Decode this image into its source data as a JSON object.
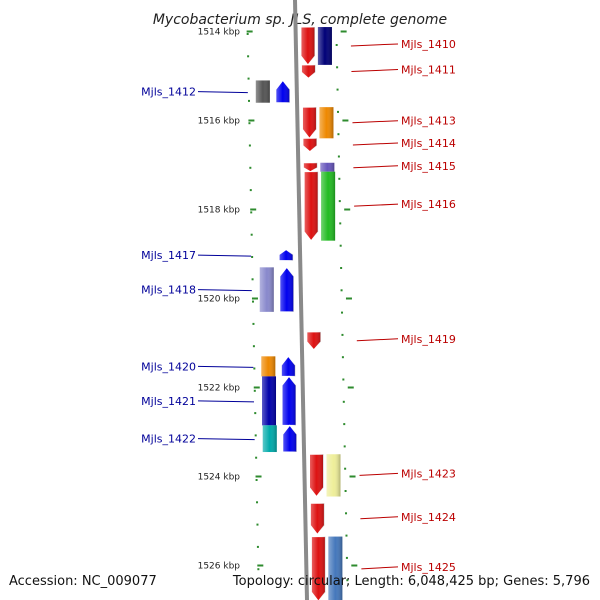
{
  "title": "Mycobacterium sp. JLS, complete genome",
  "footer": {
    "accession": "Accession: NC_009077",
    "topology": "Topology: circular; Length: 6,048,425 bp; Genes: 5,796"
  },
  "colors": {
    "background": "#ffffff",
    "dots": "#2e8b2e",
    "label_left": "#000099",
    "label_right": "#bb0000",
    "backbone": "#8a8a8a"
  },
  "axis": {
    "unit": "kbp",
    "ticks": [
      {
        "value": 1514,
        "label": "1514 kbp"
      },
      {
        "value": 1516,
        "label": "1516 kbp"
      },
      {
        "value": 1518,
        "label": "1518 kbp"
      },
      {
        "value": 1520,
        "label": "1520 kbp"
      },
      {
        "value": 1522,
        "label": "1522 kbp"
      },
      {
        "value": 1524,
        "label": "1524 kbp"
      },
      {
        "value": 1526,
        "label": "1526 kbp"
      }
    ]
  },
  "genes": [
    {
      "name": "Mjls_1410",
      "start": 1513.9,
      "end": 1514.75,
      "side": "right",
      "gene_strand": "reverse",
      "color": "#dd1111",
      "feature_color": "#000077"
    },
    {
      "name": "Mjls_1411",
      "start": 1514.75,
      "end": 1515.05,
      "side": "right",
      "gene_strand": "reverse",
      "color": "#dd1111",
      "feature_color": "#ffffff"
    },
    {
      "name": "Mjls_1412",
      "start": 1515.1,
      "end": 1515.6,
      "side": "left",
      "gene_strand": "forward",
      "color": "#0000ee",
      "feature_color": "#555555"
    },
    {
      "name": "Mjls_1413",
      "start": 1515.7,
      "end": 1516.4,
      "side": "right",
      "gene_strand": "reverse",
      "color": "#dd1111",
      "feature_color": "#ee8800"
    },
    {
      "name": "Mjls_1414",
      "start": 1516.4,
      "end": 1516.7,
      "side": "right",
      "gene_strand": "reverse",
      "color": "#dd1111",
      "feature_color": "#ffffff"
    },
    {
      "name": "Mjls_1415",
      "start": 1516.95,
      "end": 1517.15,
      "side": "right",
      "gene_strand": "reverse",
      "color": "#dd1111",
      "feature_color": "#6655bb"
    },
    {
      "name": "Mjls_1416",
      "start": 1517.15,
      "end": 1518.7,
      "side": "right",
      "gene_strand": "reverse",
      "color": "#dd1111",
      "feature_color": "#22bb22"
    },
    {
      "name": "Mjls_1417",
      "start": 1518.9,
      "end": 1519.15,
      "side": "left",
      "gene_strand": "forward",
      "color": "#0000ee",
      "feature_color": "#ffffff"
    },
    {
      "name": "Mjls_1418",
      "start": 1519.3,
      "end": 1520.3,
      "side": "left",
      "gene_strand": "forward",
      "color": "#0000ee",
      "feature_color": "#8888cc"
    },
    {
      "name": "Mjls_1419",
      "start": 1520.75,
      "end": 1521.15,
      "side": "right",
      "gene_strand": "reverse",
      "color": "#dd1111",
      "feature_color": "#ffffff"
    },
    {
      "name": "Mjls_1420",
      "start": 1521.3,
      "end": 1521.75,
      "side": "left",
      "gene_strand": "forward",
      "color": "#0000ee",
      "feature_color": "#ee8800"
    },
    {
      "name": "Mjls_1421",
      "start": 1521.75,
      "end": 1522.85,
      "side": "left",
      "gene_strand": "forward",
      "color": "#0000ee",
      "feature_color": "#0000aa"
    },
    {
      "name": "Mjls_1422",
      "start": 1522.85,
      "end": 1523.45,
      "side": "left",
      "gene_strand": "forward",
      "color": "#0000ee",
      "feature_color": "#00aaaa"
    },
    {
      "name": "Mjls_1423",
      "start": 1523.5,
      "end": 1524.45,
      "side": "right",
      "gene_strand": "reverse",
      "color": "#dd1111",
      "feature_color": "#eeee99"
    },
    {
      "name": "Mjls_1424",
      "start": 1524.6,
      "end": 1525.3,
      "side": "right",
      "gene_strand": "reverse",
      "color": "#dd1111",
      "feature_color": "#ffffff"
    },
    {
      "name": "Mjls_1425",
      "start": 1525.35,
      "end": 1526.8,
      "side": "right",
      "gene_strand": "reverse",
      "color": "#dd1111",
      "feature_color": "#4477bb"
    }
  ]
}
